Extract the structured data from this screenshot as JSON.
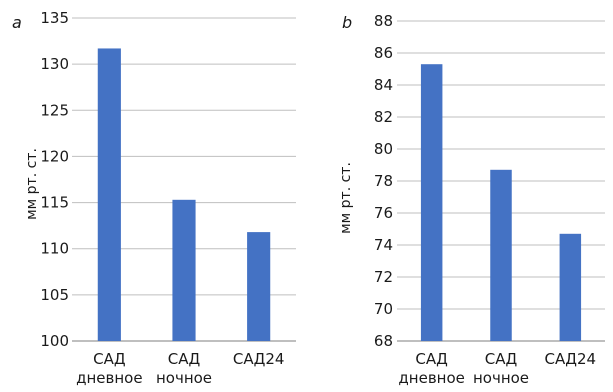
{
  "chart_data": [
    {
      "type": "bar",
      "panel_label": "a",
      "title": "",
      "xlabel": "",
      "ylabel": "мм рт. ст.",
      "categories": [
        [
          "САД",
          "дневное"
        ],
        [
          "САД",
          "ночное"
        ],
        [
          "САД24"
        ]
      ],
      "values": [
        131.7,
        115.3,
        111.8
      ],
      "ylim": [
        100,
        135
      ],
      "yticks": [
        "100",
        "105",
        "110",
        "115",
        "120",
        "125",
        "130",
        "135"
      ],
      "grid": true,
      "color": "#4472c4"
    },
    {
      "type": "bar",
      "panel_label": "b",
      "title": "",
      "xlabel": "",
      "ylabel": "мм рт. ст.",
      "categories": [
        [
          "САД",
          "дневное"
        ],
        [
          "САД",
          "ночное"
        ],
        [
          "САД24"
        ]
      ],
      "values": [
        85.3,
        78.7,
        74.7
      ],
      "ylim": [
        68,
        88
      ],
      "yticks": [
        "68",
        "70",
        "72",
        "74",
        "76",
        "78",
        "80",
        "82",
        "84",
        "86",
        "88"
      ],
      "grid": true,
      "color": "#4472c4"
    }
  ]
}
